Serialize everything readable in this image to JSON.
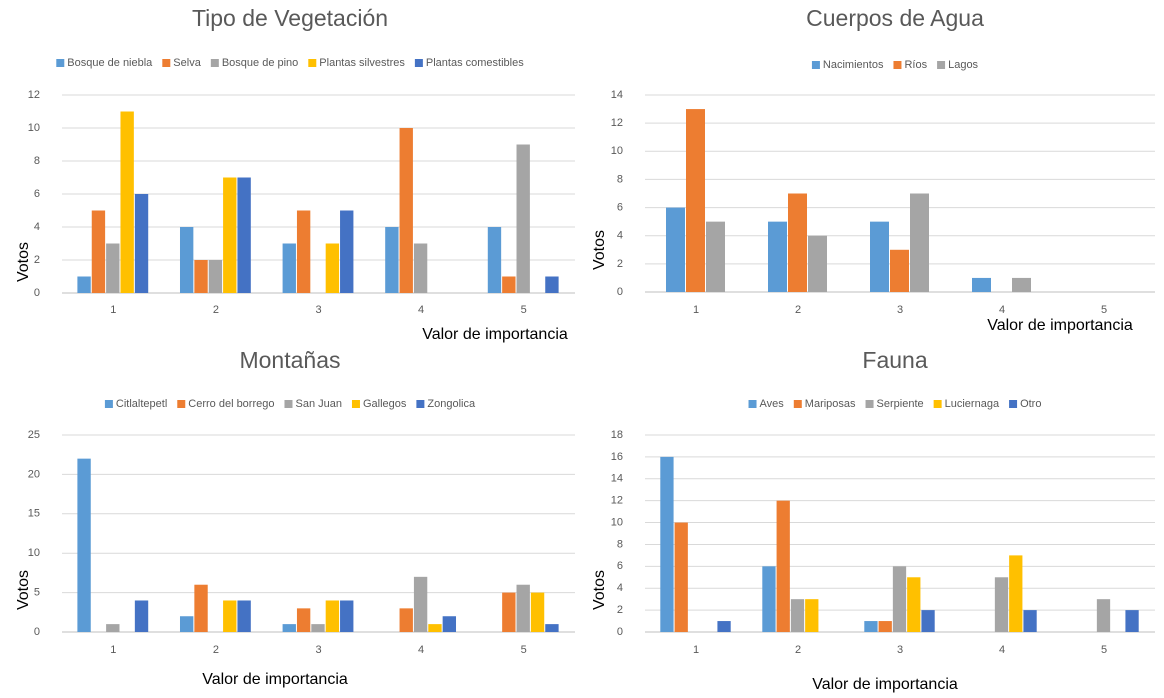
{
  "chart_data": [
    {
      "type": "bar",
      "title": "Tipo de Vegetación",
      "x_label": "Valor de importancia",
      "y_label": "Votos",
      "categories": [
        "1",
        "2",
        "3",
        "4",
        "5"
      ],
      "ylim": [
        0,
        12
      ],
      "yticks": [
        0,
        2,
        4,
        6,
        8,
        10,
        12
      ],
      "grid": true,
      "legend": "top",
      "series": [
        {
          "name": "Bosque de niebla",
          "color": "#5b9bd5",
          "values": [
            1,
            4,
            3,
            4,
            4
          ]
        },
        {
          "name": "Selva",
          "color": "#ed7d31",
          "values": [
            5,
            2,
            5,
            10,
            1
          ]
        },
        {
          "name": "Bosque de pino",
          "color": "#a5a5a5",
          "values": [
            3,
            2,
            0,
            3,
            9
          ]
        },
        {
          "name": "Plantas silvestres",
          "color": "#ffc000",
          "values": [
            11,
            7,
            3,
            0,
            0
          ]
        },
        {
          "name": "Plantas comestibles",
          "color": "#4472c4",
          "values": [
            6,
            7,
            5,
            0,
            1
          ]
        }
      ]
    },
    {
      "type": "bar",
      "title": "Cuerpos de Agua",
      "x_label": "Valor de importancia",
      "y_label": "Votos",
      "categories": [
        "1",
        "2",
        "3",
        "4",
        "5"
      ],
      "ylim": [
        0,
        14
      ],
      "yticks": [
        0,
        2,
        4,
        6,
        8,
        10,
        12,
        14
      ],
      "grid": true,
      "legend": "top",
      "series": [
        {
          "name": "Nacimientos",
          "color": "#5b9bd5",
          "values": [
            6,
            5,
            5,
            1,
            0
          ]
        },
        {
          "name": "Ríos",
          "color": "#ed7d31",
          "values": [
            13,
            7,
            3,
            0,
            0
          ]
        },
        {
          "name": "Lagos",
          "color": "#a5a5a5",
          "values": [
            5,
            4,
            7,
            1,
            0
          ]
        }
      ]
    },
    {
      "type": "bar",
      "title": "Montañas",
      "x_label": "Valor de importancia",
      "y_label": "Votos",
      "categories": [
        "1",
        "2",
        "3",
        "4",
        "5"
      ],
      "ylim": [
        0,
        25
      ],
      "yticks": [
        0,
        5,
        10,
        15,
        20,
        25
      ],
      "grid": true,
      "legend": "top",
      "series": [
        {
          "name": "Citlaltepetl",
          "color": "#5b9bd5",
          "values": [
            22,
            2,
            1,
            0,
            0
          ]
        },
        {
          "name": "Cerro del borrego",
          "color": "#ed7d31",
          "values": [
            0,
            6,
            3,
            3,
            5
          ]
        },
        {
          "name": "San Juan",
          "color": "#a5a5a5",
          "values": [
            1,
            0,
            1,
            7,
            6
          ]
        },
        {
          "name": "Gallegos",
          "color": "#ffc000",
          "values": [
            0,
            4,
            4,
            1,
            5
          ]
        },
        {
          "name": "Zongolica",
          "color": "#4472c4",
          "values": [
            4,
            4,
            4,
            2,
            1
          ]
        }
      ]
    },
    {
      "type": "bar",
      "title": "Fauna",
      "x_label": "Valor de importancia",
      "y_label": "Votos",
      "categories": [
        "1",
        "2",
        "3",
        "4",
        "5"
      ],
      "ylim": [
        0,
        18
      ],
      "yticks": [
        0,
        2,
        4,
        6,
        8,
        10,
        12,
        14,
        16,
        18
      ],
      "grid": true,
      "legend": "top",
      "series": [
        {
          "name": "Aves",
          "color": "#5b9bd5",
          "values": [
            16,
            6,
            1,
            0,
            0
          ]
        },
        {
          "name": "Mariposas",
          "color": "#ed7d31",
          "values": [
            10,
            12,
            1,
            0,
            0
          ]
        },
        {
          "name": "Serpiente",
          "color": "#a5a5a5",
          "values": [
            0,
            3,
            6,
            5,
            3
          ]
        },
        {
          "name": "Luciernaga",
          "color": "#ffc000",
          "values": [
            0,
            3,
            5,
            7,
            0
          ]
        },
        {
          "name": "Otro",
          "color": "#4472c4",
          "values": [
            1,
            0,
            2,
            2,
            2
          ]
        }
      ]
    }
  ]
}
